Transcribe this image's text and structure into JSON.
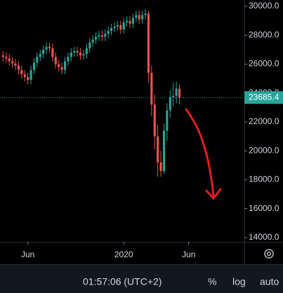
{
  "chart_data": {
    "type": "candlestick",
    "x": [
      1,
      2,
      3,
      4,
      5,
      6,
      7,
      8,
      9,
      10,
      11,
      12,
      13,
      14,
      15,
      16,
      17,
      18,
      19,
      20,
      21,
      22,
      23,
      24,
      25,
      26,
      27,
      28,
      29,
      30,
      31,
      32,
      33,
      34,
      35,
      36,
      37,
      38,
      39,
      40,
      41,
      42,
      43,
      44,
      45,
      46,
      47,
      48,
      49,
      50,
      51,
      52,
      53,
      54,
      55,
      56,
      57,
      58
    ],
    "open": [
      26600,
      26500,
      26400,
      26200,
      26050,
      25900,
      25600,
      25300,
      25100,
      24900,
      25600,
      26100,
      26500,
      26700,
      27000,
      27200,
      27100,
      26500,
      26000,
      25800,
      25600,
      26200,
      26500,
      26800,
      26900,
      26800,
      26600,
      26700,
      27100,
      27500,
      27700,
      27900,
      28000,
      27900,
      28100,
      28300,
      28500,
      28600,
      28700,
      28400,
      28900,
      29000,
      28800,
      29200,
      29400,
      29100,
      29400,
      29500,
      25400,
      23200,
      21000,
      19200,
      18600,
      21400,
      22800,
      23700,
      23800,
      24300
    ],
    "high": [
      26900,
      26800,
      26700,
      26500,
      26350,
      26200,
      25900,
      25600,
      25400,
      25900,
      26400,
      26800,
      27000,
      27300,
      27500,
      27500,
      27400,
      26800,
      26300,
      26100,
      26500,
      26800,
      27100,
      27200,
      27200,
      27100,
      27000,
      27400,
      27800,
      28000,
      28200,
      28300,
      28300,
      28400,
      28600,
      28800,
      28900,
      29000,
      29000,
      29200,
      29300,
      29300,
      29500,
      29700,
      29700,
      29700,
      29800,
      29700,
      25900,
      23900,
      21800,
      20000,
      21900,
      23300,
      24200,
      24700,
      24800,
      24600
    ],
    "low": [
      26200,
      26100,
      25900,
      25750,
      25600,
      25300,
      25000,
      24800,
      24600,
      24600,
      25300,
      25800,
      26200,
      26400,
      26700,
      26800,
      26200,
      25700,
      25500,
      25300,
      25300,
      25900,
      26200,
      26500,
      26500,
      26300,
      26300,
      26400,
      26800,
      27200,
      27400,
      27600,
      27600,
      27600,
      27800,
      28000,
      28200,
      28300,
      28100,
      28100,
      28600,
      28500,
      28500,
      28900,
      28800,
      28800,
      29100,
      24700,
      22400,
      20100,
      18200,
      18200,
      18400,
      20700,
      22300,
      23100,
      23300,
      23200
    ],
    "close": [
      26500,
      26400,
      26200,
      26050,
      25900,
      25600,
      25300,
      25100,
      24900,
      25600,
      26100,
      26500,
      26700,
      27000,
      27200,
      27100,
      26500,
      26000,
      25800,
      25600,
      26200,
      26500,
      26800,
      26900,
      26800,
      26600,
      26700,
      27100,
      27500,
      27700,
      27900,
      28000,
      27900,
      28100,
      28300,
      28500,
      28600,
      28700,
      28400,
      28900,
      29000,
      28800,
      29200,
      29400,
      29100,
      29400,
      29500,
      25400,
      23200,
      21000,
      19200,
      18600,
      21400,
      22800,
      23700,
      23800,
      24300,
      23685.4
    ],
    "up_color": "#26a69a",
    "down_color": "#ef5350",
    "xlim": [
      0,
      79
    ],
    "xticks": [
      {
        "value": 9,
        "label": "Jun"
      },
      {
        "value": 40,
        "label": "2020"
      },
      {
        "value": 61,
        "label": "Jun"
      }
    ],
    "ylim": [
      13700,
      30440
    ],
    "yticks": [
      {
        "value": 14000,
        "label": "14000.0"
      },
      {
        "value": 16000,
        "label": "16000.0"
      },
      {
        "value": 18000,
        "label": "18000.0"
      },
      {
        "value": 20000,
        "label": "20000.0"
      },
      {
        "value": 22000,
        "label": "22000.0"
      },
      {
        "value": 24000,
        "label": "24000.0"
      },
      {
        "value": 26000,
        "label": "26000.0"
      },
      {
        "value": 28000,
        "label": "28000.0"
      },
      {
        "value": 30000,
        "label": "30000.0"
      }
    ],
    "grid": false
  },
  "toolbar": {
    "time": "01:57:06 (UTC+2)",
    "percent": "%",
    "log": "log",
    "auto": "auto"
  }
}
